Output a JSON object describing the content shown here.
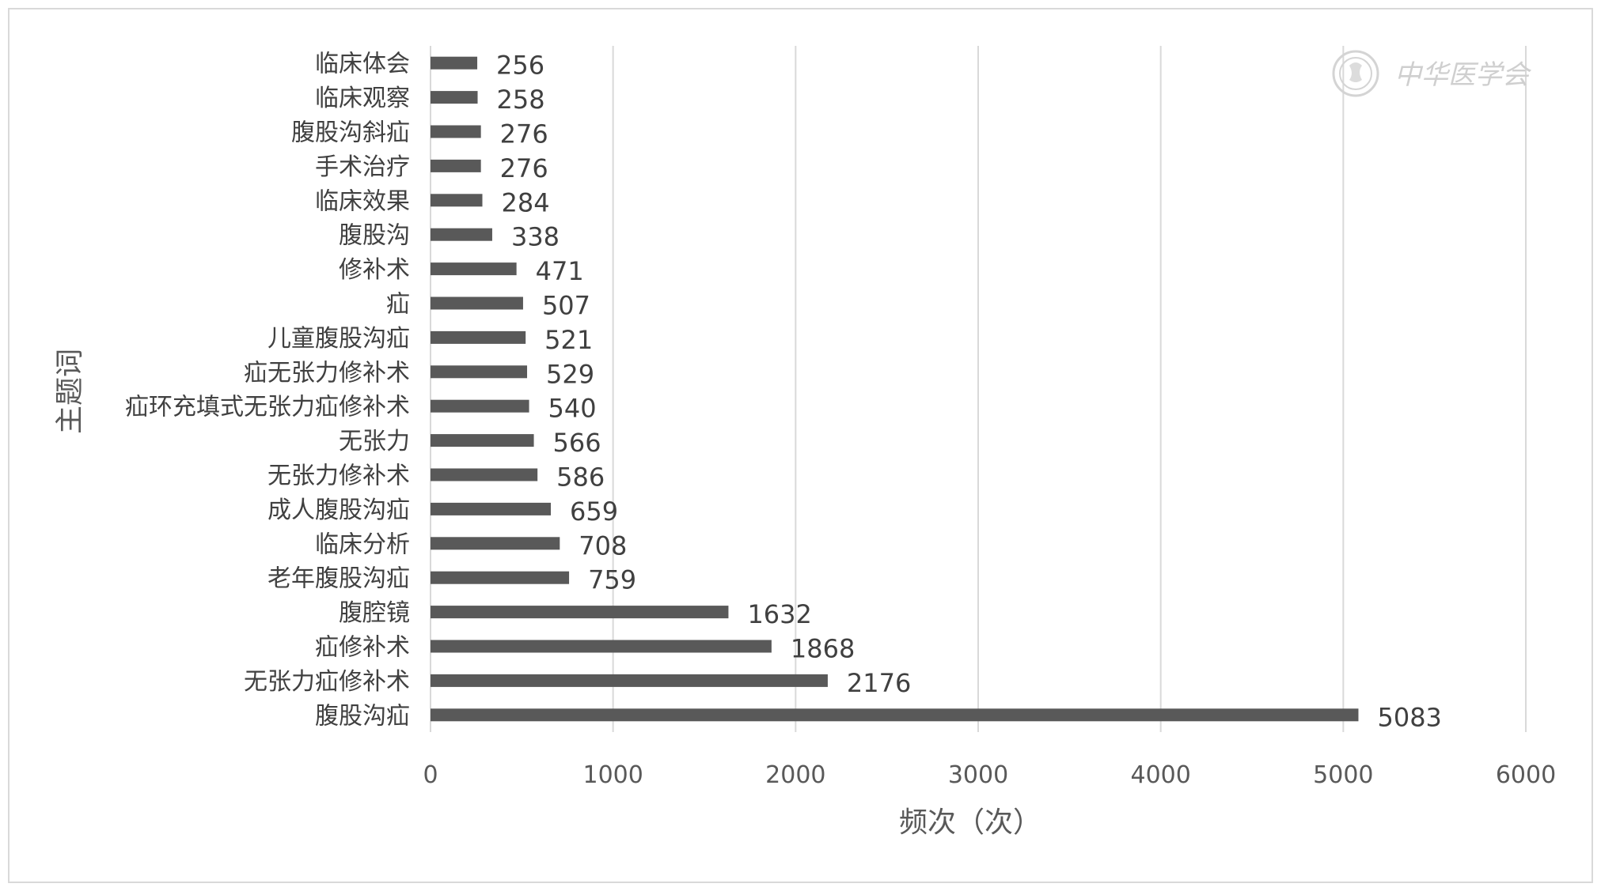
{
  "chart_data": {
    "type": "bar",
    "orientation": "horizontal",
    "categories": [
      "腹股沟疝",
      "无张力疝修补术",
      "疝修补术",
      "腹腔镜",
      "老年腹股沟疝",
      "临床分析",
      "成人腹股沟疝",
      "无张力修补术",
      "无张力",
      "疝环充填式无张力疝修补术",
      "疝无张力修补术",
      "儿童腹股沟疝",
      "疝",
      "修补术",
      "腹股沟",
      "临床效果",
      "手术治疗",
      "腹股沟斜疝",
      "临床观察",
      "临床体会"
    ],
    "values": [
      5083,
      2176,
      1868,
      1632,
      759,
      708,
      659,
      586,
      566,
      540,
      529,
      521,
      507,
      471,
      338,
      284,
      276,
      276,
      258,
      256
    ],
    "value_labels": [
      "5083",
      "2176",
      "1868",
      "1632",
      "759",
      "708",
      "659",
      "586",
      "566",
      "540",
      "529",
      "521",
      "507",
      "471",
      "338",
      "284",
      "276",
      "276",
      "258",
      "256"
    ],
    "xlabel": "频次（次）",
    "ylabel": "主题词",
    "xlim": [
      0,
      6000
    ],
    "xticks": [
      "0",
      "1000",
      "2000",
      "3000",
      "4000",
      "5000",
      "6000"
    ],
    "grid": "vertical",
    "bar_color": "#595959",
    "grid_color": "#d9d9d9"
  },
  "watermark": {
    "text": "中华医学会",
    "icon": "cma-seal-icon"
  }
}
